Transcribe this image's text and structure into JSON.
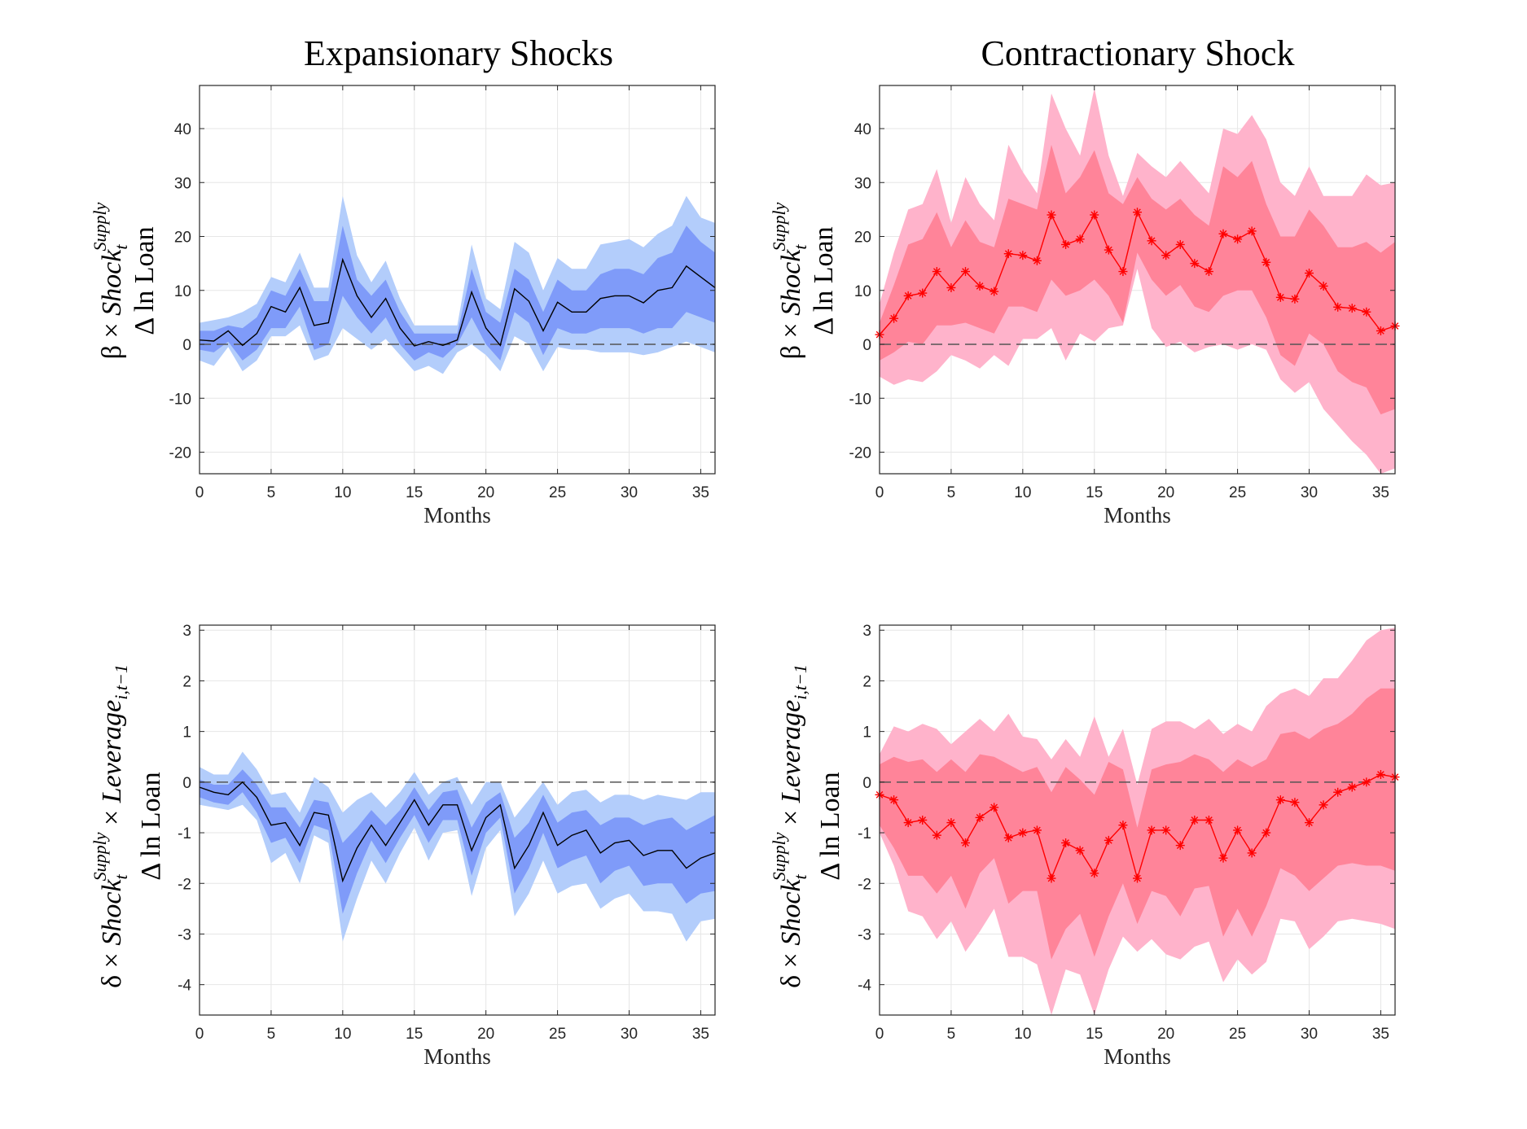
{
  "column_titles": [
    "Expansionary Shocks",
    "Contractionary Shock"
  ],
  "ylabels": {
    "beta": {
      "prefix": "β × ",
      "shock": "Shock",
      "sub": "t",
      "sup": "Supply",
      "line2": "Δ ln Loan"
    },
    "delta": {
      "prefix": "δ × ",
      "shock": "Shock",
      "sub": "t",
      "sup": "Supply",
      "mid": " × ",
      "lev": "Leverage",
      "lev_sub": "i,t−1",
      "line2": "Δ ln Loan"
    }
  },
  "colors": {
    "blue_outer": "#b3cdfb",
    "blue_inner": "#7f9bf9",
    "blue_line": "#000000",
    "red_outer": "#ffb3cb",
    "red_inner": "#ff8499",
    "red_line": "#ff0000",
    "grid": "#e6e6e6",
    "zero_line": "#555555"
  },
  "chart_data": [
    {
      "type": "area",
      "panel": "top-left",
      "xlabel": "Months",
      "xlim": [
        0,
        36
      ],
      "ylim": [
        -24,
        48
      ],
      "xticks": [
        0,
        5,
        10,
        15,
        20,
        25,
        30,
        35
      ],
      "yticks": [
        -20,
        -10,
        0,
        10,
        20,
        30,
        40
      ],
      "x": [
        0,
        1,
        2,
        3,
        4,
        5,
        6,
        7,
        8,
        9,
        10,
        11,
        12,
        13,
        14,
        15,
        16,
        17,
        18,
        19,
        20,
        21,
        22,
        23,
        24,
        25,
        26,
        27,
        28,
        29,
        30,
        31,
        32,
        33,
        34,
        35,
        36
      ],
      "series": [
        {
          "values": [
            0.8,
            0.6,
            2.5,
            -0.2,
            2,
            7,
            6,
            10.5,
            3.5,
            4,
            15.7,
            9,
            5,
            8.5,
            3,
            -0.3,
            0.5,
            -0.2,
            0.8,
            9.7,
            3,
            -0.2,
            10.3,
            8,
            2.5,
            7.8,
            6,
            6,
            8.5,
            9,
            9,
            7.7,
            10,
            10.5,
            14.5,
            12.5,
            10.5
          ]
        },
        {
          "band": "inner",
          "upper": [
            2.5,
            2.5,
            3.5,
            3,
            5,
            10,
            9,
            14,
            8,
            8,
            22,
            12,
            9,
            12,
            6,
            2,
            2,
            2,
            2,
            14,
            6,
            4,
            14,
            12,
            6,
            12,
            10,
            10,
            13,
            14,
            14,
            13,
            16,
            17,
            22,
            19,
            17
          ],
          "lower": [
            -1,
            -1.5,
            0.5,
            -3,
            -1,
            3,
            3,
            7,
            -1,
            0,
            9,
            5,
            2,
            5,
            0,
            -3,
            -1.5,
            -2.5,
            0,
            5,
            0,
            -3,
            6,
            4,
            -2,
            3,
            2,
            2,
            3,
            3,
            3,
            2,
            3,
            3,
            6,
            5,
            4
          ]
        },
        {
          "band": "outer",
          "upper": [
            4,
            4.5,
            5,
            6,
            7.5,
            12.5,
            11.5,
            17,
            10.5,
            10.5,
            27.5,
            16.5,
            11.5,
            15.5,
            8.5,
            3.5,
            3.5,
            3.5,
            3.5,
            18.5,
            8.5,
            6.5,
            19,
            17,
            10,
            16,
            14,
            14,
            18.5,
            19,
            19.5,
            18,
            20.5,
            22,
            27.5,
            23.5,
            22.5
          ],
          "lower": [
            -3,
            -4,
            -0.5,
            -5,
            -3,
            1.5,
            1.5,
            3.5,
            -3,
            -2,
            3,
            1,
            -1,
            1,
            -2,
            -5,
            -4,
            -5.5,
            -1.5,
            0,
            -2,
            -5,
            1.5,
            0,
            -5,
            -0.5,
            -1,
            -1,
            -1.5,
            -1.5,
            -1.5,
            -2,
            -1.5,
            -0.5,
            0.5,
            -0.5,
            -1.5
          ]
        }
      ]
    },
    {
      "type": "area",
      "panel": "top-right",
      "xlabel": "Months",
      "xlim": [
        0,
        36
      ],
      "ylim": [
        -24,
        48
      ],
      "xticks": [
        0,
        5,
        10,
        15,
        20,
        25,
        30,
        35
      ],
      "yticks": [
        -20,
        -10,
        0,
        10,
        20,
        30,
        40
      ],
      "x": [
        0,
        1,
        2,
        3,
        4,
        5,
        6,
        7,
        8,
        9,
        10,
        11,
        12,
        13,
        14,
        15,
        16,
        17,
        18,
        19,
        20,
        21,
        22,
        23,
        24,
        25,
        26,
        27,
        28,
        29,
        30,
        31,
        32,
        33,
        34,
        35,
        36
      ],
      "series": [
        {
          "values": [
            1.8,
            4.8,
            9,
            9.5,
            13.5,
            10.5,
            13.5,
            10.8,
            9.8,
            16.8,
            16.5,
            15.5,
            24,
            18.5,
            19.5,
            24,
            17.5,
            13.5,
            24.5,
            19.2,
            16.5,
            18.5,
            15,
            13.5,
            20.5,
            19.5,
            21,
            15.2,
            8.7,
            8.4,
            13.2,
            10.8,
            6.9,
            6.7,
            6,
            2.5,
            3.4
          ]
        },
        {
          "band": "inner",
          "upper": [
            4,
            11,
            18.5,
            19.5,
            24.5,
            18,
            23,
            19,
            18,
            27,
            26,
            25,
            37,
            28,
            31,
            36,
            28,
            26,
            31,
            27,
            25,
            27,
            24,
            22,
            33,
            31,
            34,
            26,
            20,
            20,
            25,
            22,
            18,
            18,
            19,
            17,
            19
          ],
          "lower": [
            -3,
            -1.5,
            0.5,
            0,
            3.5,
            3.5,
            4,
            3,
            2,
            7,
            7,
            6,
            12,
            9,
            10,
            12,
            9,
            4,
            17,
            12,
            9,
            11,
            7,
            6,
            9,
            10,
            10,
            5,
            -2,
            -4,
            2,
            0,
            -5,
            -7,
            -8,
            -13,
            -12
          ]
        },
        {
          "band": "outer",
          "upper": [
            7.5,
            17,
            25,
            26,
            32.5,
            22.5,
            31,
            26,
            23,
            37,
            32,
            28,
            46.5,
            40,
            35,
            47.5,
            35,
            27.5,
            35.5,
            33,
            31,
            34,
            31,
            28,
            40,
            39,
            42.5,
            38,
            30,
            27.5,
            33,
            27.5,
            27.5,
            27.5,
            31.5,
            29.5,
            30
          ],
          "lower": [
            -6,
            -7.5,
            -6.5,
            -7,
            -5,
            -2,
            -3,
            -4.5,
            -2,
            -4,
            1,
            1,
            3,
            -3,
            2,
            0.5,
            3,
            3.5,
            14,
            3,
            -0.5,
            0.5,
            -1.5,
            -0.5,
            0,
            -1,
            0,
            -1,
            -6.5,
            -9,
            -7,
            -12,
            -15,
            -18,
            -20.5,
            -24,
            -23
          ]
        }
      ]
    },
    {
      "type": "area",
      "panel": "bottom-left",
      "xlabel": "Months",
      "xlim": [
        0,
        36
      ],
      "ylim": [
        -4.6,
        3.1
      ],
      "xticks": [
        0,
        5,
        10,
        15,
        20,
        25,
        30,
        35
      ],
      "yticks": [
        -4,
        -3,
        -2,
        -1,
        0,
        1,
        2,
        3
      ],
      "x": [
        0,
        1,
        2,
        3,
        4,
        5,
        6,
        7,
        8,
        9,
        10,
        11,
        12,
        13,
        14,
        15,
        16,
        17,
        18,
        19,
        20,
        21,
        22,
        23,
        24,
        25,
        26,
        27,
        28,
        29,
        30,
        31,
        32,
        33,
        34,
        35,
        36
      ],
      "series": [
        {
          "values": [
            -0.1,
            -0.2,
            -0.25,
            0,
            -0.3,
            -0.85,
            -0.8,
            -1.25,
            -0.6,
            -0.65,
            -1.95,
            -1.3,
            -0.85,
            -1.25,
            -0.8,
            -0.35,
            -0.85,
            -0.45,
            -0.45,
            -1.35,
            -0.7,
            -0.45,
            -1.7,
            -1.25,
            -0.6,
            -1.25,
            -1.05,
            -0.95,
            -1.4,
            -1.2,
            -1.15,
            -1.45,
            -1.35,
            -1.35,
            -1.7,
            -1.5,
            -1.4
          ]
        },
        {
          "band": "inner",
          "upper": [
            0.05,
            -0.05,
            -0.05,
            0.25,
            -0.05,
            -0.5,
            -0.5,
            -0.9,
            -0.35,
            -0.4,
            -1.2,
            -0.9,
            -0.55,
            -0.85,
            -0.55,
            -0.1,
            -0.55,
            -0.2,
            -0.15,
            -0.9,
            -0.4,
            -0.2,
            -1.1,
            -0.8,
            -0.25,
            -0.8,
            -0.6,
            -0.55,
            -0.85,
            -0.7,
            -0.7,
            -0.85,
            -0.75,
            -0.7,
            -0.95,
            -0.8,
            -0.65
          ],
          "lower": [
            -0.3,
            -0.4,
            -0.45,
            -0.2,
            -0.6,
            -1.2,
            -1.1,
            -1.6,
            -0.85,
            -0.95,
            -2.6,
            -1.8,
            -1.15,
            -1.6,
            -1.1,
            -0.65,
            -1.2,
            -0.75,
            -0.75,
            -1.85,
            -1.0,
            -0.7,
            -2.2,
            -1.7,
            -1.0,
            -1.7,
            -1.55,
            -1.45,
            -2.0,
            -1.75,
            -1.65,
            -2.05,
            -2.0,
            -2.0,
            -2.4,
            -2.2,
            -2.15
          ]
        },
        {
          "band": "outer",
          "upper": [
            0.3,
            0.15,
            0.15,
            0.6,
            0.25,
            -0.25,
            -0.2,
            -0.6,
            0.1,
            -0.1,
            -0.6,
            -0.35,
            -0.2,
            -0.5,
            -0.2,
            0.2,
            -0.25,
            0.0,
            0.1,
            -0.45,
            0.0,
            0.0,
            -0.7,
            -0.35,
            0.0,
            -0.45,
            -0.2,
            -0.15,
            -0.4,
            -0.25,
            -0.25,
            -0.35,
            -0.25,
            -0.3,
            -0.35,
            -0.2,
            -0.2
          ],
          "lower": [
            -0.45,
            -0.5,
            -0.55,
            -0.45,
            -0.75,
            -1.6,
            -1.4,
            -2.0,
            -1.05,
            -1.2,
            -3.15,
            -2.3,
            -1.55,
            -2.0,
            -1.4,
            -0.9,
            -1.55,
            -1.0,
            -0.95,
            -2.25,
            -1.3,
            -0.95,
            -2.65,
            -2.2,
            -1.55,
            -2.2,
            -2.05,
            -2.0,
            -2.5,
            -2.3,
            -2.2,
            -2.55,
            -2.55,
            -2.6,
            -3.15,
            -2.75,
            -2.7
          ]
        }
      ]
    },
    {
      "type": "area",
      "panel": "bottom-right",
      "xlabel": "Months",
      "xlim": [
        0,
        36
      ],
      "ylim": [
        -4.6,
        3.1
      ],
      "xticks": [
        0,
        5,
        10,
        15,
        20,
        25,
        30,
        35
      ],
      "yticks": [
        -4,
        -3,
        -2,
        -1,
        0,
        1,
        2,
        3
      ],
      "x": [
        0,
        1,
        2,
        3,
        4,
        5,
        6,
        7,
        8,
        9,
        10,
        11,
        12,
        13,
        14,
        15,
        16,
        17,
        18,
        19,
        20,
        21,
        22,
        23,
        24,
        25,
        26,
        27,
        28,
        29,
        30,
        31,
        32,
        33,
        34,
        35,
        36
      ],
      "series": [
        {
          "values": [
            -0.25,
            -0.35,
            -0.8,
            -0.75,
            -1.05,
            -0.8,
            -1.2,
            -0.7,
            -0.5,
            -1.1,
            -1.0,
            -0.95,
            -1.9,
            -1.2,
            -1.35,
            -1.8,
            -1.15,
            -0.85,
            -1.9,
            -0.95,
            -0.95,
            -1.25,
            -0.75,
            -0.75,
            -1.5,
            -0.95,
            -1.4,
            -1.0,
            -0.35,
            -0.4,
            -0.8,
            -0.45,
            -0.2,
            -0.1,
            0.0,
            0.15,
            0.1
          ]
        },
        {
          "band": "inner",
          "upper": [
            0.35,
            0.5,
            0.4,
            0.45,
            0.2,
            0.45,
            0.2,
            0.55,
            0.5,
            0.35,
            0.2,
            0.3,
            -0.2,
            0.3,
            0.05,
            -0.25,
            0.4,
            0.25,
            -0.9,
            0.25,
            0.35,
            0.4,
            0.55,
            0.45,
            0.2,
            0.45,
            0.3,
            0.45,
            0.95,
            1.0,
            0.85,
            1.05,
            1.15,
            1.35,
            1.65,
            1.85,
            1.85
          ],
          "lower": [
            -0.85,
            -1.3,
            -1.85,
            -1.85,
            -2.2,
            -1.85,
            -2.5,
            -1.8,
            -1.5,
            -2.4,
            -2.15,
            -2.15,
            -3.5,
            -2.9,
            -2.6,
            -3.45,
            -2.65,
            -2.0,
            -2.8,
            -2.15,
            -2.25,
            -2.65,
            -2.1,
            -2.05,
            -3.05,
            -2.5,
            -3.05,
            -2.45,
            -1.7,
            -1.85,
            -2.15,
            -1.9,
            -1.65,
            -1.6,
            -1.65,
            -1.65,
            -1.75
          ]
        },
        {
          "band": "outer",
          "upper": [
            0.55,
            1.1,
            1.0,
            1.15,
            1.05,
            0.75,
            1.0,
            1.25,
            1.0,
            1.35,
            0.9,
            0.85,
            0.45,
            0.85,
            0.5,
            1.3,
            0.5,
            1.05,
            -0.05,
            1.05,
            1.2,
            1.2,
            1.05,
            1.25,
            0.95,
            1.15,
            1.0,
            1.5,
            1.75,
            1.85,
            1.7,
            2.05,
            2.05,
            2.4,
            2.8,
            3.0,
            3.05
          ],
          "lower": [
            -1.0,
            -1.65,
            -2.55,
            -2.65,
            -3.1,
            -2.75,
            -3.35,
            -2.95,
            -2.5,
            -3.45,
            -3.45,
            -3.6,
            -4.6,
            -3.7,
            -3.8,
            -4.6,
            -3.7,
            -3.05,
            -3.35,
            -3.1,
            -3.4,
            -3.5,
            -3.25,
            -3.15,
            -3.95,
            -3.5,
            -3.8,
            -3.55,
            -2.7,
            -2.75,
            -3.3,
            -3.05,
            -2.75,
            -2.7,
            -2.75,
            -2.8,
            -2.9
          ]
        }
      ]
    }
  ]
}
